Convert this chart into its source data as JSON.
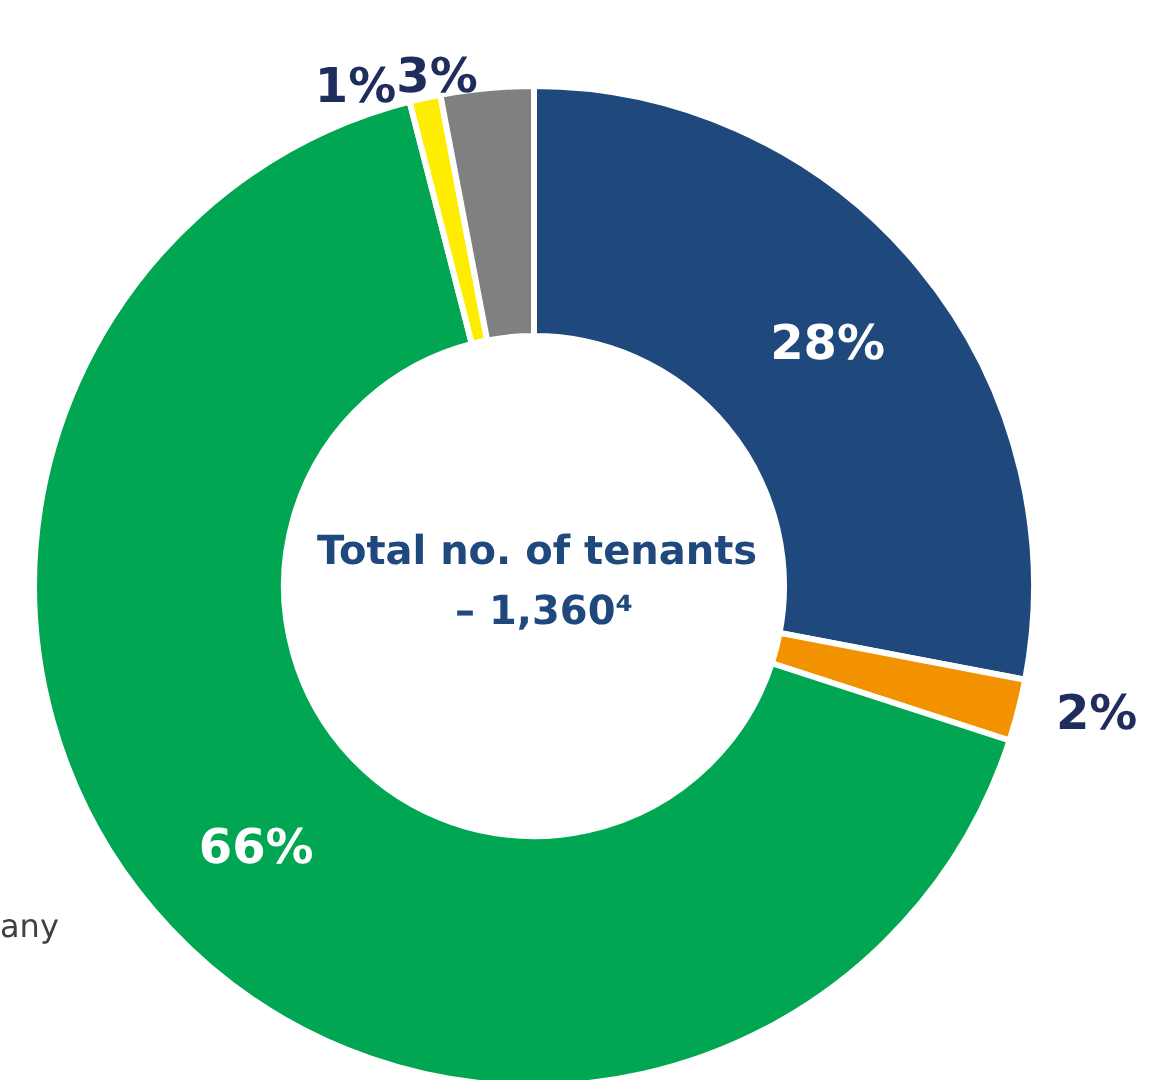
{
  "chart_data": {
    "type": "donut",
    "title": "Total no. of tenants – 1,360⁴",
    "categories": [
      null,
      null,
      null,
      null,
      null
    ],
    "values": [
      28,
      2,
      66,
      1,
      3
    ],
    "colors": [
      "#1f497d",
      "#f39200",
      "#00a651",
      "#ffed00",
      "#808080"
    ],
    "value_labels": [
      "28%",
      "2%",
      "66%",
      "1%",
      "3%"
    ],
    "annotations": [
      "any"
    ]
  }
}
